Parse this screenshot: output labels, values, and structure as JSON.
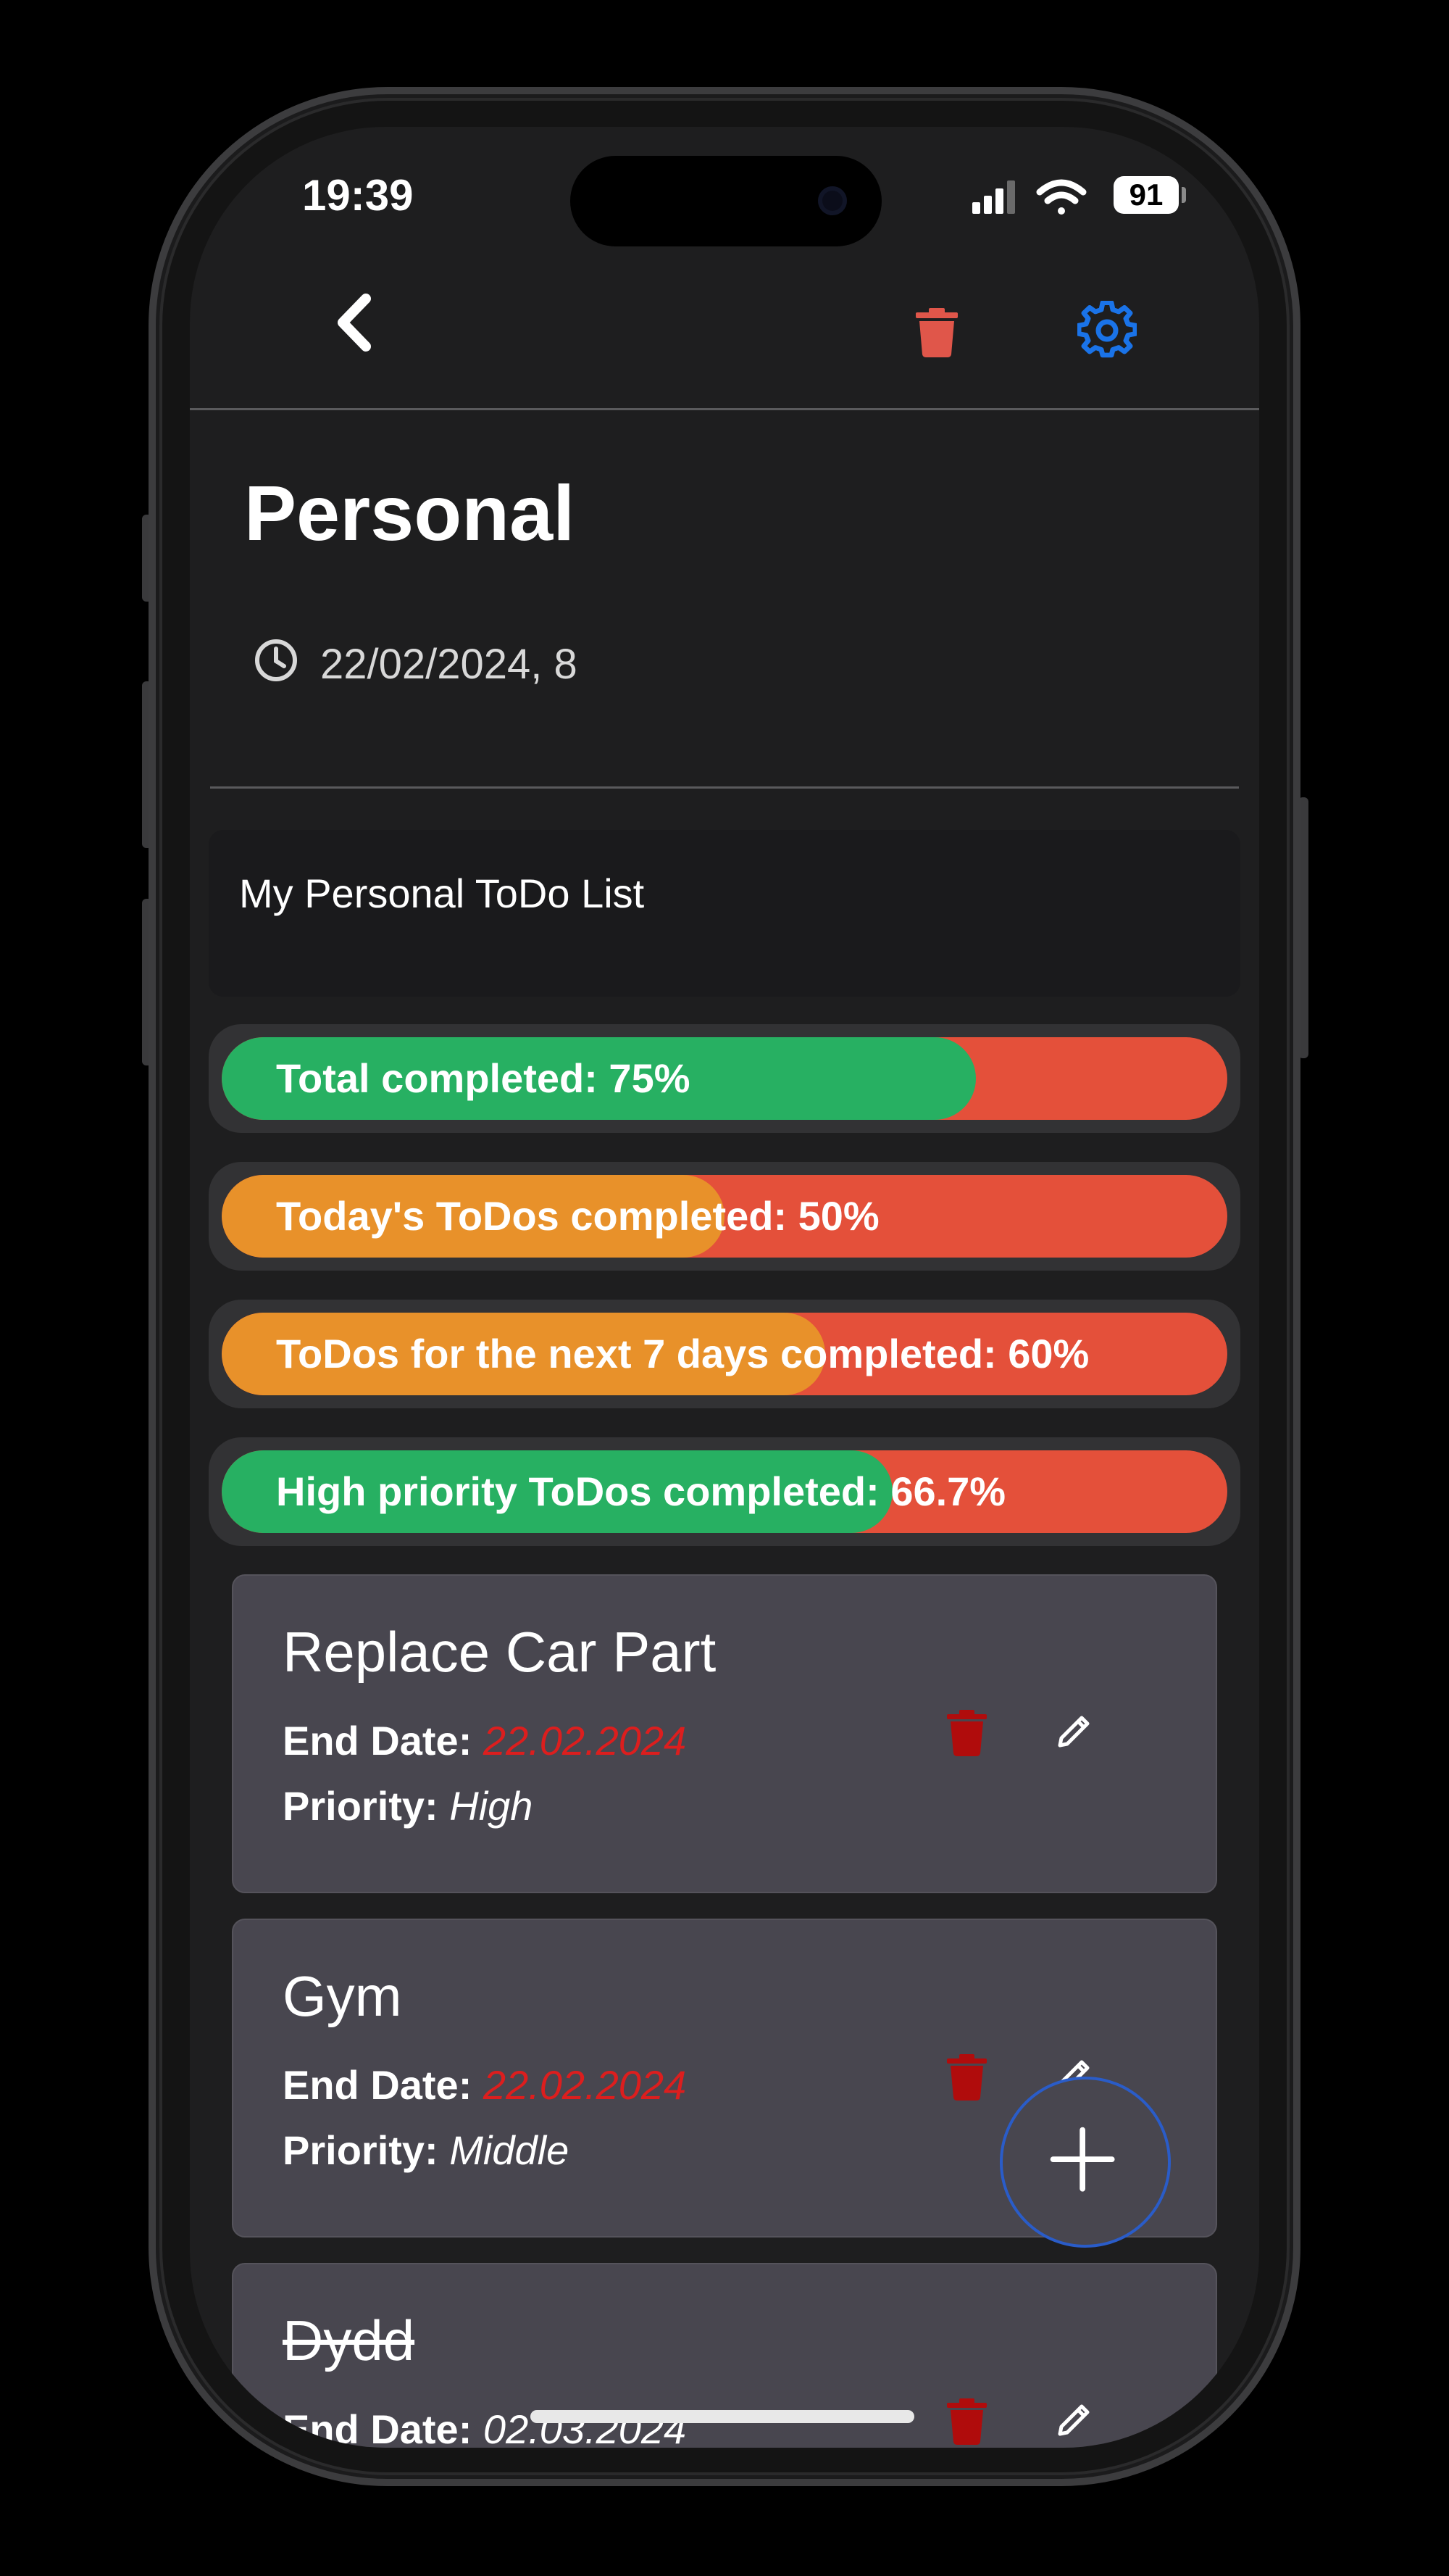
{
  "status_bar": {
    "time": "19:39",
    "battery": "91",
    "icons": [
      "cellular-signal-icon",
      "wifi-icon",
      "battery-icon"
    ]
  },
  "nav": {
    "icons": [
      "back-chevron-icon",
      "trash-icon",
      "gear-icon"
    ],
    "colors": {
      "trash": "#e0564a",
      "gear": "#1a73e8"
    }
  },
  "list": {
    "title": "Personal",
    "date": "22/02/2024, 8",
    "description": "My Personal ToDo List"
  },
  "progress": [
    {
      "label": "Total completed: 75%",
      "percent": 75,
      "color": "#27b062"
    },
    {
      "label": "Today's ToDos completed: 50%",
      "percent": 50,
      "color": "#e8912a"
    },
    {
      "label": "ToDos for the next 7 days completed: 60%",
      "percent": 60,
      "color": "#e8912a"
    },
    {
      "label": "High priority ToDos completed: 66.7%",
      "percent": 66.7,
      "color": "#27b062"
    }
  ],
  "progress_remainder_color": "#e4503a",
  "todos": [
    {
      "title": "Replace Car Part",
      "end_label": "End Date:",
      "end_date": "22.02.2024",
      "priority_label": "Priority:",
      "priority": "High",
      "overdue": true,
      "done": false
    },
    {
      "title": "Gym",
      "end_label": "End Date:",
      "end_date": "22.02.2024",
      "priority_label": "Priority:",
      "priority": "Middle",
      "overdue": true,
      "done": false
    },
    {
      "title": "Dydd",
      "end_label": "End Date:",
      "end_date": "02.03.2024",
      "done": true
    }
  ],
  "fab": {
    "icon": "plus-icon"
  }
}
